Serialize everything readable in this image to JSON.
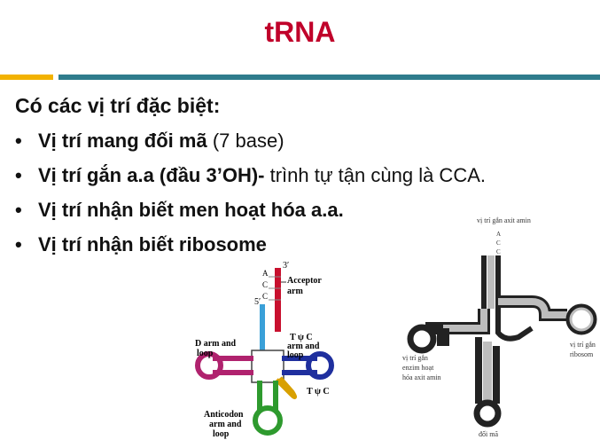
{
  "slide": {
    "title": "tRNA"
  },
  "intro": "Có các vị trí đặc biệt:",
  "bullets": [
    {
      "bold": "Vị trí mang đối mã",
      "normal": " (7 base)"
    },
    {
      "bold": "Vị trí gắn a.a (đầu 3’OH)-",
      "normal": " trình tự tận cùng là CCA."
    },
    {
      "bold": "Vị trí nhận biết men hoạt hóa a.a.",
      "normal": ""
    },
    {
      "bold": "Vị trí nhận biết ribosome",
      "normal": ""
    }
  ],
  "left_diagram": {
    "three_prime": "3′",
    "five_prime": "5′",
    "bases": [
      "A",
      "C",
      "C"
    ],
    "acceptor_label": [
      "Acceptor",
      "arm"
    ],
    "d_arm_label": [
      "D arm and",
      "loop"
    ],
    "t_arm_label": [
      "T ψ C",
      "arm and",
      "loop"
    ],
    "t_psi": "T ψ C",
    "anticodon_label": [
      "Anticodon",
      "arm and",
      "loop"
    ],
    "colors": {
      "acceptor": "#c8102e",
      "d_arm": "#b0226e",
      "t_arm": "#1f2f9e",
      "anticodon": "#2e9a2e",
      "variable": "#d8a000",
      "stem": "#3aa0d8"
    }
  },
  "right_diagram": {
    "top_label": "vị trí gắn axit amin",
    "bases": [
      "A",
      "C",
      "C"
    ],
    "left_label": [
      "vị trí gắn",
      "enzim hoạt",
      "hóa axit amin"
    ],
    "right_label": [
      "vị trí gắn",
      "ribosom"
    ],
    "bottom_label": "đối mã"
  }
}
